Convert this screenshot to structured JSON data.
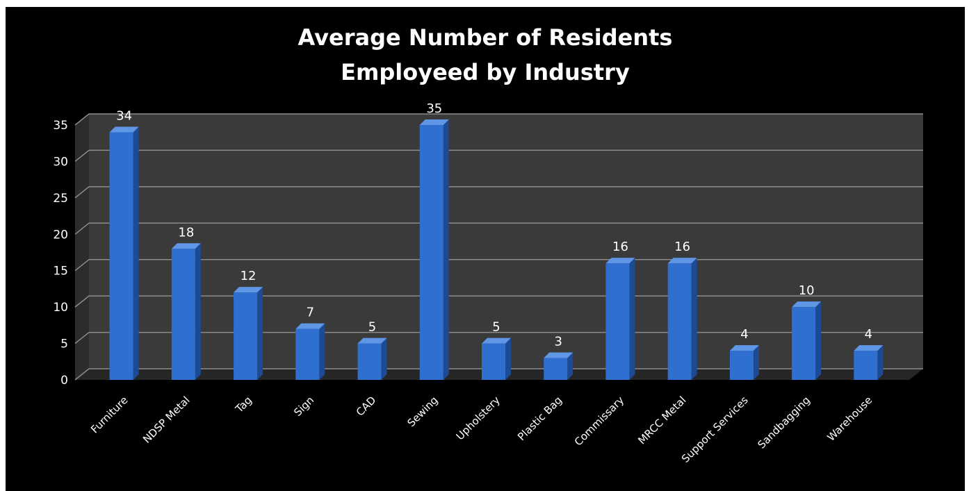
{
  "chart_data": {
    "type": "bar",
    "title": "Average Number of Residents Employeed by Industry",
    "title_lines": [
      "Average Number of Residents",
      "Employeed by Industry"
    ],
    "categories": [
      "Furniture",
      "NDSP Metal",
      "Tag",
      "Sign",
      "CAD",
      "Sewing",
      "Upholstery",
      "Plastic Bag",
      "Commissary",
      "MRCC Metal",
      "Support Services",
      "Sandbagging",
      "Warehouse"
    ],
    "values": [
      34,
      18,
      12,
      7,
      5,
      35,
      5,
      3,
      16,
      16,
      4,
      10,
      4
    ],
    "data_labels": [
      "34",
      "18",
      "12",
      "7",
      "5",
      "35",
      "5",
      "3",
      "16",
      "16",
      "4",
      "10",
      "4"
    ],
    "y_ticks": [
      "0",
      "5",
      "10",
      "15",
      "20",
      "25",
      "30",
      "35"
    ],
    "ylim": [
      0,
      35
    ],
    "xlabel": "",
    "ylabel": "",
    "grid": true,
    "legend": "none",
    "style": "3d-column",
    "colors": {
      "background": "#000000",
      "plot_wall": "#3a3a3a",
      "floor": "#262626",
      "gridline": "#8c8c8c",
      "bar_front": "#2f6fd0",
      "bar_side": "#1c4a94",
      "bar_top": "#5f97e6",
      "text": "#ffffff"
    }
  }
}
